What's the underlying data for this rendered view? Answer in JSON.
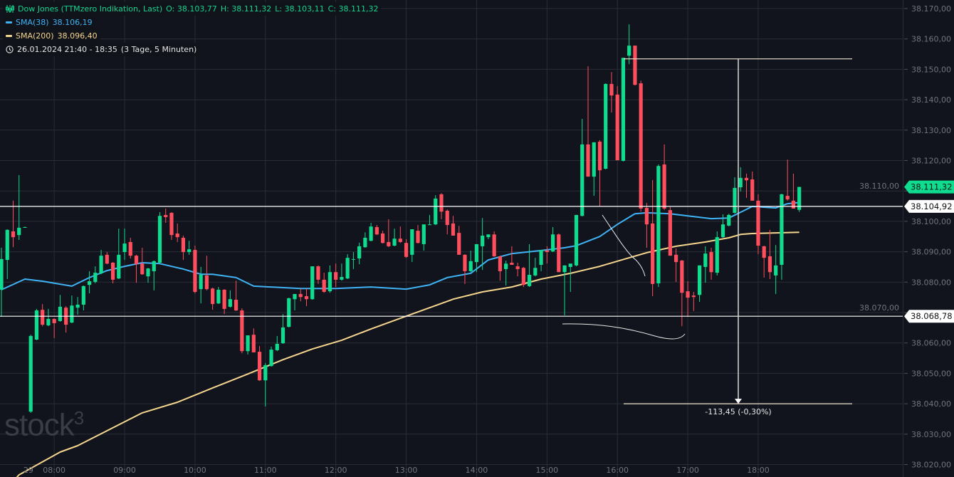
{
  "legend": {
    "instrument": "Dow Jones (TTMzero Indikation, Last)",
    "ohlc": {
      "o": "O: 38.103,77",
      "h": "H: 38.111,32",
      "l": "L: 38.103,11",
      "c": "C: 38.111,32"
    },
    "sma38": {
      "label": "SMA(38)",
      "value": "38.106,19",
      "color": "#3fb3f5"
    },
    "sma200": {
      "label": "SMA(200)",
      "value": "38.096,40",
      "color": "#f6d58e"
    },
    "range": "26.01.2024 21:40 - 18:35",
    "range_detail": "(3 Tage, 5 Minuten)",
    "icons": {
      "instrument": "candlestick-chart-icon",
      "range": "clock-icon"
    }
  },
  "watermark": "stock3",
  "colors": {
    "up": "#0fdc8e",
    "down": "#ff4e5d",
    "background": "#11141c",
    "grid": "#2a2d36",
    "axis_text": "#70747d",
    "drawing": "#e8e8e8"
  },
  "chart_data": {
    "type": "candlestick",
    "ylim": [
      38017,
      38172
    ],
    "price_ticks": [
      "38.170,00",
      "38.160,00",
      "38.150,00",
      "38.140,00",
      "38.130,00",
      "38.120,00",
      "38.110,00",
      "38.100,00",
      "38.090,00",
      "38.080,00",
      "38.070,00",
      "38.060,00",
      "38.050,00",
      "38.040,00",
      "38.030,00",
      "38.020,00"
    ],
    "price_tick_values": [
      38170,
      38160,
      38150,
      38140,
      38130,
      38120,
      38110,
      38100,
      38090,
      38080,
      38070,
      38060,
      38050,
      38040,
      38030,
      38020
    ],
    "time_ticks": [
      {
        "label": "29",
        "candle": 4.6
      },
      {
        "label": "08:00",
        "candle": 9
      },
      {
        "label": "09:00",
        "candle": 21
      },
      {
        "label": "10:00",
        "candle": 33
      },
      {
        "label": "11:00",
        "candle": 45
      },
      {
        "label": "12:00",
        "candle": 57
      },
      {
        "label": "13:00",
        "candle": 69
      },
      {
        "label": "14:00",
        "candle": 81
      },
      {
        "label": "15:00",
        "candle": 93
      },
      {
        "label": "16:00",
        "candle": 105
      },
      {
        "label": "17:00",
        "candle": 117
      },
      {
        "label": "18:00",
        "candle": 129
      }
    ],
    "candles": [
      [
        38077.5,
        38091.3,
        38068.6,
        38087.6
      ],
      [
        38087.3,
        38097.4,
        38081.0,
        38097.2
      ],
      [
        38096.7,
        38106.8,
        38091.5,
        38094.8
      ],
      [
        38095.5,
        38115.2,
        38093.9,
        38097.9
      ],
      [
        38098.1,
        38098.3,
        38097.9,
        38098.1
      ],
      [
        38037.4,
        38062.7,
        38037.0,
        38062.3
      ],
      [
        38061.1,
        38071.2,
        38060.9,
        38070.7
      ],
      [
        38070.9,
        38072.8,
        38065.5,
        38066.0
      ],
      [
        38065.8,
        38071.2,
        38065.5,
        38067.9
      ],
      [
        38067.9,
        38068.1,
        38061.6,
        38066.5
      ],
      [
        38067.2,
        38075.8,
        38067.0,
        38071.9
      ],
      [
        38071.6,
        38072.1,
        38063.4,
        38066.0
      ],
      [
        38066.7,
        38075.6,
        38066.5,
        38072.3
      ],
      [
        38071.6,
        38075.1,
        38069.3,
        38072.6
      ],
      [
        38072.6,
        38078.9,
        38070.7,
        38078.7
      ],
      [
        38079.1,
        38083.6,
        38076.3,
        38080.3
      ],
      [
        38080.1,
        38085.2,
        38079.6,
        38083.1
      ],
      [
        38082.9,
        38090.6,
        38082.6,
        38088.7
      ],
      [
        38089.0,
        38089.9,
        38085.9,
        38086.1
      ],
      [
        38086.4,
        38086.6,
        38079.6,
        38080.8
      ],
      [
        38081.2,
        38097.6,
        38081.0,
        38089.0
      ],
      [
        38089.9,
        38097.6,
        38087.3,
        38092.7
      ],
      [
        38093.2,
        38094.6,
        38087.8,
        38088.7
      ],
      [
        38088.7,
        38089.0,
        38079.8,
        38085.9
      ],
      [
        38086.1,
        38091.3,
        38082.4,
        38082.6
      ],
      [
        38081.9,
        38084.7,
        38079.8,
        38084.5
      ],
      [
        38083.6,
        38087.1,
        38077.3,
        38086.9
      ],
      [
        38086.4,
        38103.0,
        38086.1,
        38101.8
      ],
      [
        38102.1,
        38104.2,
        38099.5,
        38101.4
      ],
      [
        38102.8,
        38103.0,
        38093.9,
        38095.5
      ],
      [
        38096.0,
        38099.3,
        38093.2,
        38094.8
      ],
      [
        38094.6,
        38095.3,
        38087.3,
        38089.9
      ],
      [
        38089.9,
        38093.6,
        38089.0,
        38090.8
      ],
      [
        38090.6,
        38092.0,
        38076.3,
        38076.8
      ],
      [
        38077.7,
        38085.0,
        38073.0,
        38082.4
      ],
      [
        38082.2,
        38088.7,
        38077.3,
        38077.7
      ],
      [
        38077.9,
        38078.2,
        38070.9,
        38072.8
      ],
      [
        38073.0,
        38078.4,
        38072.8,
        38077.5
      ],
      [
        38077.5,
        38077.7,
        38069.5,
        38071.2
      ],
      [
        38071.9,
        38077.3,
        38071.6,
        38074.4
      ],
      [
        38074.2,
        38080.5,
        38070.5,
        38070.7
      ],
      [
        38070.7,
        38071.4,
        38056.6,
        38057.3
      ],
      [
        38057.3,
        38062.5,
        38056.2,
        38062.5
      ],
      [
        38062.7,
        38064.8,
        38056.9,
        38056.9
      ],
      [
        38057.1,
        38059.0,
        38047.5,
        38047.7
      ],
      [
        38047.7,
        38053.4,
        38039.1,
        38052.7
      ],
      [
        38052.4,
        38058.8,
        38052.2,
        38057.8
      ],
      [
        38057.6,
        38062.3,
        38057.3,
        38059.7
      ],
      [
        38059.9,
        38069.5,
        38059.7,
        38065.1
      ],
      [
        38065.3,
        38074.9,
        38065.1,
        38074.7
      ],
      [
        38074.4,
        38076.1,
        38070.7,
        38076.1
      ],
      [
        38076.1,
        38077.9,
        38073.7,
        38075.1
      ],
      [
        38075.4,
        38077.9,
        38072.1,
        38074.4
      ],
      [
        38074.4,
        38085.2,
        38074.2,
        38085.2
      ],
      [
        38085.2,
        38085.5,
        38079.4,
        38080.8
      ],
      [
        38080.8,
        38083.1,
        38076.5,
        38076.8
      ],
      [
        38077.0,
        38085.5,
        38076.5,
        38083.3
      ],
      [
        38083.3,
        38086.1,
        38078.4,
        38080.8
      ],
      [
        38080.8,
        38086.1,
        38080.5,
        38081.7
      ],
      [
        38081.2,
        38089.2,
        38081.0,
        38088.0
      ],
      [
        38087.6,
        38089.9,
        38084.3,
        38087.6
      ],
      [
        38087.8,
        38093.0,
        38085.9,
        38091.8
      ],
      [
        38091.5,
        38096.4,
        38091.3,
        38094.6
      ],
      [
        38093.6,
        38099.5,
        38093.4,
        38098.3
      ],
      [
        38098.1,
        38098.8,
        38095.5,
        38095.7
      ],
      [
        38096.0,
        38096.9,
        38092.7,
        38092.9
      ],
      [
        38093.2,
        38100.7,
        38091.5,
        38091.8
      ],
      [
        38092.0,
        38097.6,
        38091.8,
        38094.3
      ],
      [
        38094.3,
        38098.3,
        38092.9,
        38093.2
      ],
      [
        38092.9,
        38094.1,
        38088.0,
        38088.3
      ],
      [
        38089.0,
        38097.4,
        38086.6,
        38097.4
      ],
      [
        38096.9,
        38098.8,
        38092.7,
        38092.9
      ],
      [
        38092.5,
        38099.0,
        38090.4,
        38099.0
      ],
      [
        38099.0,
        38102.1,
        38098.8,
        38099.0
      ],
      [
        38099.0,
        38108.6,
        38098.8,
        38107.5
      ],
      [
        38108.9,
        38109.3,
        38100.7,
        38103.2
      ],
      [
        38103.5,
        38103.9,
        38095.7,
        38098.8
      ],
      [
        38099.3,
        38101.8,
        38095.3,
        38095.3
      ],
      [
        38096.2,
        38098.5,
        38089.0,
        38089.0
      ],
      [
        38089.0,
        38089.2,
        38079.4,
        38083.6
      ],
      [
        38083.6,
        38090.4,
        38083.3,
        38086.9
      ],
      [
        38086.6,
        38092.5,
        38083.3,
        38092.5
      ],
      [
        38091.8,
        38101.1,
        38084.0,
        38095.3
      ],
      [
        38094.8,
        38095.7,
        38094.1,
        38095.7
      ],
      [
        38095.7,
        38096.7,
        38088.3,
        38088.5
      ],
      [
        38088.5,
        38088.7,
        38080.5,
        38083.6
      ],
      [
        38084.3,
        38087.1,
        38078.9,
        38086.1
      ],
      [
        38086.4,
        38091.8,
        38085.7,
        38085.7
      ],
      [
        38085.2,
        38086.4,
        38081.9,
        38084.3
      ],
      [
        38084.7,
        38085.0,
        38078.4,
        38079.1
      ],
      [
        38078.7,
        38092.5,
        38078.4,
        38082.4
      ],
      [
        38082.2,
        38088.0,
        38081.9,
        38084.7
      ],
      [
        38085.7,
        38090.6,
        38083.6,
        38090.6
      ],
      [
        38090.4,
        38091.8,
        38086.1,
        38089.9
      ],
      [
        38090.1,
        38098.1,
        38089.9,
        38095.7
      ],
      [
        38095.7,
        38096.0,
        38083.3,
        38083.3
      ],
      [
        38083.3,
        38085.5,
        38069.1,
        38085.5
      ],
      [
        38085.0,
        38086.1,
        38076.8,
        38086.1
      ],
      [
        38085.5,
        38102.1,
        38085.2,
        38102.1
      ],
      [
        38101.8,
        38133.7,
        38101.6,
        38125.3
      ],
      [
        38125.3,
        38151.0,
        38114.7,
        38114.7
      ],
      [
        38114.7,
        38126.0,
        38108.4,
        38126.0
      ],
      [
        38126.2,
        38126.7,
        38104.9,
        38116.8
      ],
      [
        38117.3,
        38145.4,
        38117.1,
        38145.2
      ],
      [
        38145.2,
        38149.1,
        38135.8,
        38141.4
      ],
      [
        38141.7,
        38144.5,
        38120.1,
        38120.1
      ],
      [
        38119.9,
        38153.8,
        38119.7,
        38153.8
      ],
      [
        38154.5,
        38164.8,
        38151.7,
        38157.8
      ],
      [
        38157.8,
        38157.8,
        38144.7,
        38144.9
      ],
      [
        38145.4,
        38146.3,
        38103.2,
        38104.2
      ],
      [
        38104.4,
        38106.1,
        38091.3,
        38099.0
      ],
      [
        38099.3,
        38113.6,
        38075.4,
        38079.4
      ],
      [
        38079.6,
        38118.7,
        38078.4,
        38118.2
      ],
      [
        38118.7,
        38125.3,
        38103.7,
        38104.2
      ],
      [
        38103.7,
        38104.7,
        38088.7,
        38088.7
      ],
      [
        38089.0,
        38091.1,
        38080.1,
        38086.6
      ],
      [
        38087.1,
        38087.3,
        38065.5,
        38076.5
      ],
      [
        38077.0,
        38080.3,
        38068.6,
        38074.9
      ],
      [
        38075.6,
        38076.8,
        38070.5,
        38075.1
      ],
      [
        38075.8,
        38085.5,
        38073.5,
        38085.5
      ],
      [
        38085.0,
        38091.8,
        38079.8,
        38089.4
      ],
      [
        38089.9,
        38091.3,
        38080.8,
        38083.3
      ],
      [
        38083.1,
        38096.7,
        38082.2,
        38094.8
      ],
      [
        38094.8,
        38102.3,
        38094.6,
        38099.0
      ],
      [
        38098.6,
        38102.5,
        38098.3,
        38102.1
      ],
      [
        38102.8,
        38114.5,
        38102.5,
        38111.0
      ],
      [
        38111.2,
        38117.8,
        38109.8,
        38114.3
      ],
      [
        38114.3,
        38115.7,
        38107.7,
        38113.5
      ],
      [
        38113.8,
        38116.4,
        38106.8,
        38106.8
      ],
      [
        38106.8,
        38108.9,
        38089.2,
        38092.0
      ],
      [
        38091.8,
        38092.0,
        38081.5,
        38088.0
      ],
      [
        38088.5,
        38097.2,
        38081.0,
        38083.3
      ],
      [
        38082.2,
        38092.2,
        38076.1,
        38085.5
      ],
      [
        38085.7,
        38109.1,
        38080.8,
        38108.9
      ],
      [
        38108.4,
        38120.3,
        38106.8,
        38107.2
      ],
      [
        38106.8,
        38115.7,
        38104.2,
        38104.2
      ],
      [
        38103.77,
        38111.32,
        38103.11,
        38111.32
      ]
    ],
    "sma38": [
      [
        0,
        38077.5
      ],
      [
        4,
        38081.0
      ],
      [
        7,
        38080.3
      ],
      [
        12,
        38078.7
      ],
      [
        15,
        38081.5
      ],
      [
        18,
        38083.8
      ],
      [
        21,
        38085.2
      ],
      [
        24,
        38086.4
      ],
      [
        27,
        38086.1
      ],
      [
        31,
        38084.3
      ],
      [
        34,
        38082.6
      ],
      [
        36,
        38082.6
      ],
      [
        40,
        38081.5
      ],
      [
        43,
        38078.7
      ],
      [
        51,
        38077.9
      ],
      [
        57,
        38077.9
      ],
      [
        63,
        38078.4
      ],
      [
        69,
        38077.7
      ],
      [
        73,
        38079.1
      ],
      [
        76,
        38081.5
      ],
      [
        80,
        38082.9
      ],
      [
        83,
        38087.3
      ],
      [
        87,
        38089.4
      ],
      [
        92,
        38090.4
      ],
      [
        96,
        38091.3
      ],
      [
        98,
        38092.0
      ],
      [
        102,
        38095.0
      ],
      [
        105,
        38099.0
      ],
      [
        108,
        38102.5
      ],
      [
        110,
        38102.8
      ],
      [
        114,
        38102.5
      ],
      [
        117,
        38101.8
      ],
      [
        121,
        38100.9
      ],
      [
        124,
        38101.1
      ],
      [
        126,
        38103.0
      ],
      [
        128,
        38104.9
      ],
      [
        132,
        38104.4
      ],
      [
        134,
        38105.8
      ],
      [
        136,
        38106.19
      ]
    ],
    "sma200": [
      [
        2,
        38014.5
      ],
      [
        3,
        38016.6
      ],
      [
        10,
        38024.1
      ],
      [
        13,
        38026.2
      ],
      [
        24,
        38037.0
      ],
      [
        30,
        38040.5
      ],
      [
        36,
        38045.2
      ],
      [
        42,
        38049.8
      ],
      [
        48,
        38054.5
      ],
      [
        53,
        38058.0
      ],
      [
        58,
        38060.9
      ],
      [
        63,
        38064.6
      ],
      [
        68,
        38068.1
      ],
      [
        73,
        38071.6
      ],
      [
        77,
        38074.4
      ],
      [
        82,
        38076.8
      ],
      [
        87,
        38078.4
      ],
      [
        92,
        38081.0
      ],
      [
        97,
        38082.9
      ],
      [
        102,
        38085.2
      ],
      [
        107,
        38088.0
      ],
      [
        110,
        38089.7
      ],
      [
        115,
        38091.8
      ],
      [
        120,
        38093.2
      ],
      [
        124,
        38094.6
      ],
      [
        126,
        38095.7
      ],
      [
        128,
        38096.0
      ],
      [
        136,
        38096.4
      ]
    ],
    "horizontal_lines": [
      {
        "value": 38104.92,
        "label": "38.104,92"
      },
      {
        "value": 38068.78,
        "label": "38.068,78"
      }
    ],
    "last_price": {
      "value": 38111.32,
      "label": "38.111,32"
    },
    "measure": {
      "top": 38153.45,
      "bottom": 38040.0,
      "label": "-113,45 (-0,30%)"
    }
  }
}
